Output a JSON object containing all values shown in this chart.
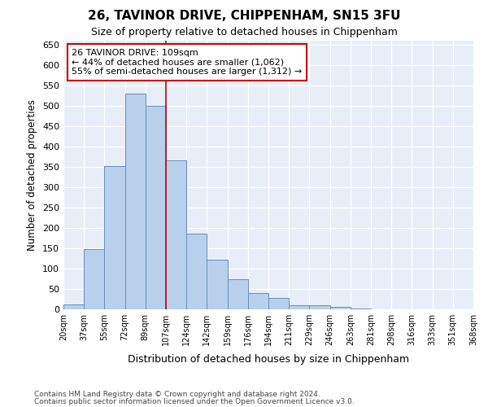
{
  "title": "26, TAVINOR DRIVE, CHIPPENHAM, SN15 3FU",
  "subtitle": "Size of property relative to detached houses in Chippenham",
  "xlabel": "Distribution of detached houses by size in Chippenham",
  "ylabel": "Number of detached properties",
  "bar_values": [
    12,
    148,
    353,
    530,
    500,
    367,
    187,
    122,
    75,
    40,
    28,
    10,
    11,
    7,
    2,
    0,
    0,
    0,
    0,
    0
  ],
  "bar_labels": [
    "20sqm",
    "37sqm",
    "55sqm",
    "72sqm",
    "89sqm",
    "107sqm",
    "124sqm",
    "142sqm",
    "159sqm",
    "176sqm",
    "194sqm",
    "211sqm",
    "229sqm",
    "246sqm",
    "263sqm",
    "281sqm",
    "298sqm",
    "316sqm",
    "333sqm",
    "351sqm",
    "368sqm"
  ],
  "bar_color": "#b8d0eb",
  "bar_edge_color": "#6090c0",
  "annotation_line1": "26 TAVINOR DRIVE: 109sqm",
  "annotation_line2": "← 44% of detached houses are smaller (1,062)",
  "annotation_line3": "55% of semi-detached houses are larger (1,312) →",
  "annotation_box_color": "white",
  "annotation_box_edge_color": "#cc0000",
  "vline_color": "#cc0000",
  "vline_x": 4.0,
  "ylim": [
    0,
    660
  ],
  "yticks": [
    0,
    50,
    100,
    150,
    200,
    250,
    300,
    350,
    400,
    450,
    500,
    550,
    600,
    650
  ],
  "bg_color": "#e8eef8",
  "grid_color": "white",
  "footer_line1": "Contains HM Land Registry data © Crown copyright and database right 2024.",
  "footer_line2": "Contains public sector information licensed under the Open Government Licence v3.0."
}
